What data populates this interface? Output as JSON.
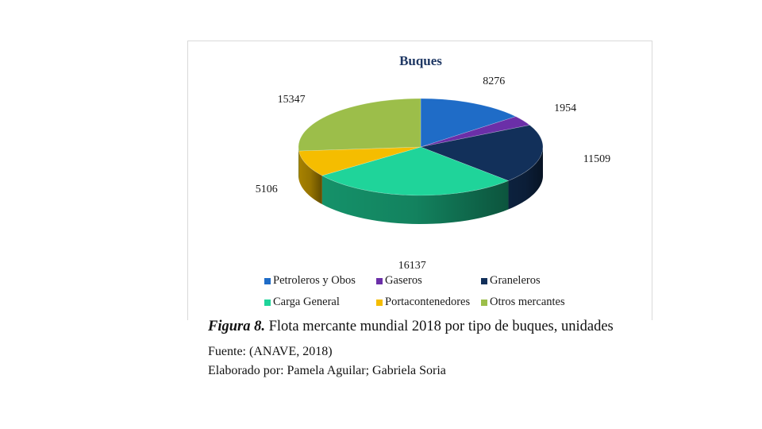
{
  "chart_data": {
    "type": "pie",
    "title": "Buques",
    "categories": [
      "Petroleros y Obos",
      "Gaseros",
      "Graneleros",
      "Carga General",
      "Portacontenedores",
      "Otros mercantes"
    ],
    "values": [
      8276,
      1954,
      11509,
      16137,
      5106,
      15347
    ],
    "data_labels": [
      "8276",
      "1954",
      "11509",
      "16137",
      "5106",
      "15347"
    ],
    "colors": [
      "#1f6cc7",
      "#6b2fa8",
      "#12305a",
      "#1fd49a",
      "#f5bd00",
      "#9cbe4a"
    ],
    "legend_position": "bottom"
  },
  "caption": {
    "figure_label": "Figura 8.",
    "text": " Flota mercante mundial 2018 por tipo de buques, unidades"
  },
  "source_line": "Fuente: (ANAVE, 2018)",
  "author_line": "Elaborado por: Pamela Aguilar; Gabriela Soria"
}
